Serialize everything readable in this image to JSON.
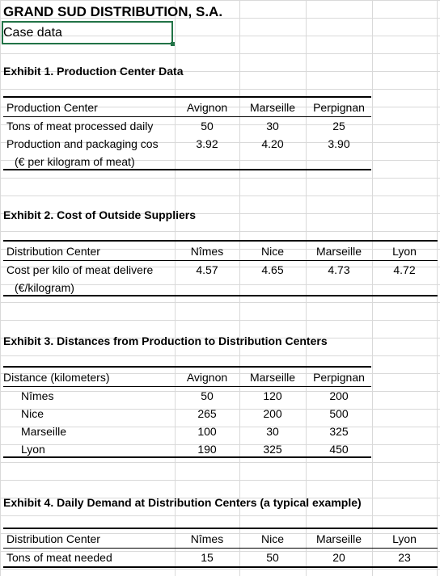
{
  "title": "GRAND SUD DISTRIBUTION, S.A.",
  "subtitle": "Case data",
  "exhibit1": {
    "heading": "Exhibit 1.  Production Center Data",
    "header_label": "Production Center",
    "centers": [
      "Avignon",
      "Marseille",
      "Perpignan"
    ],
    "row1_label": "Tons of meat processed daily",
    "row1_values": [
      "50",
      "30",
      "25"
    ],
    "row2_label": "Production and packaging cos",
    "row2_values": [
      "3.92",
      "4.20",
      "3.90"
    ],
    "row3_label": "(€ per kilogram of meat)"
  },
  "exhibit2": {
    "heading": "Exhibit 2.  Cost of Outside Suppliers",
    "header_label": "Distribution Center",
    "centers": [
      "Nîmes",
      "Nice",
      "Marseille",
      "Lyon"
    ],
    "row1_label": "Cost per kilo of meat delivere",
    "row1_values": [
      "4.57",
      "4.65",
      "4.73",
      "4.72"
    ],
    "row2_label": "(€/kilogram)"
  },
  "exhibit3": {
    "heading": "Exhibit 3.  Distances from Production to Distribution Centers",
    "header_label": "Distance (kilometers)",
    "centers": [
      "Avignon",
      "Marseille",
      "Perpignan"
    ],
    "rows": [
      {
        "label": "Nîmes",
        "values": [
          "50",
          "120",
          "200"
        ]
      },
      {
        "label": "Nice",
        "values": [
          "265",
          "200",
          "500"
        ]
      },
      {
        "label": "Marseille",
        "values": [
          "100",
          "30",
          "325"
        ]
      },
      {
        "label": "Lyon",
        "values": [
          "190",
          "325",
          "450"
        ]
      }
    ]
  },
  "exhibit4": {
    "heading": "Exhibit 4.  Daily Demand at Distribution Centers (a typical example)",
    "header_label": "Distribution Center",
    "centers": [
      "Nîmes",
      "Nice",
      "Marseille",
      "Lyon"
    ],
    "row1_label": "Tons of meat needed",
    "row1_values": [
      "15",
      "50",
      "20",
      "23"
    ]
  },
  "colors": {
    "gridline": "#d9d9d9",
    "selection": "#217346"
  }
}
